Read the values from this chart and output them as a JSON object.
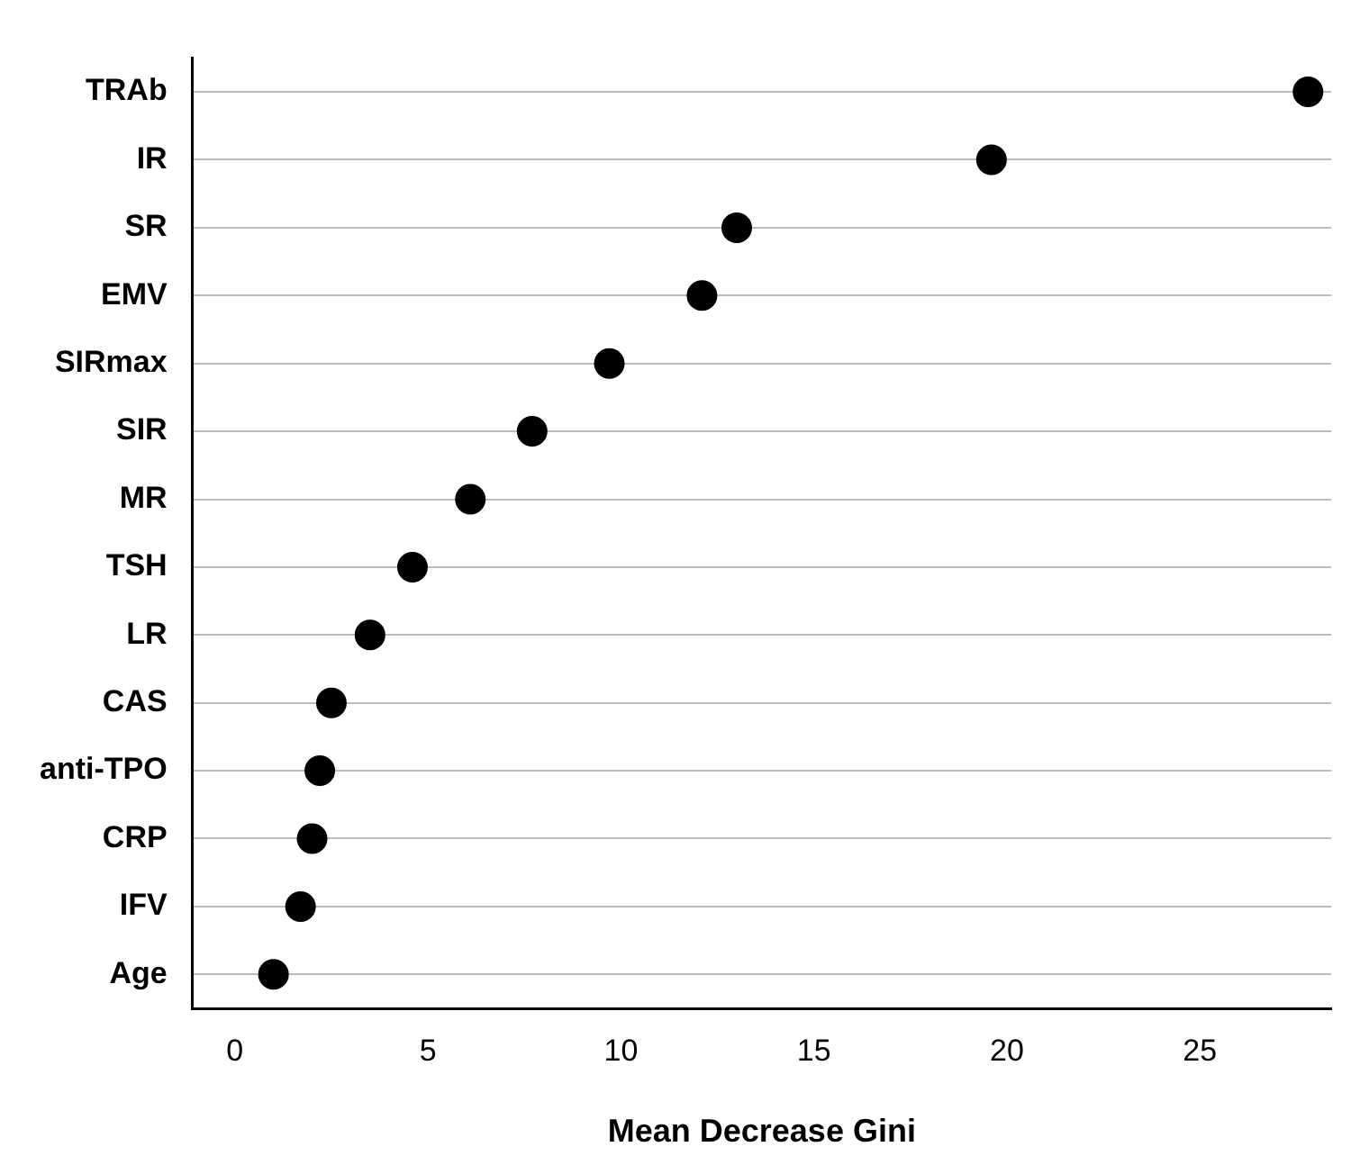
{
  "chart_data": {
    "type": "scatter",
    "orientation": "horizontal",
    "xlabel": "Mean Decrease Gini",
    "categories": [
      "TRAb",
      "IR",
      "SR",
      "EMV",
      "SIRmax",
      "SIR",
      "MR",
      "TSH",
      "LR",
      "CAS",
      "anti-TPO",
      "CRP",
      "IFV",
      "Age"
    ],
    "values": [
      27.8,
      19.6,
      13.0,
      12.1,
      9.7,
      7.7,
      6.1,
      4.6,
      3.5,
      2.5,
      2.2,
      2.0,
      1.7,
      1.0
    ],
    "color": "#000000",
    "marker": "circle",
    "xlim": [
      -1.1,
      28.4
    ],
    "xticks": [
      0,
      5,
      10,
      15,
      20,
      25
    ],
    "grid": "y",
    "legend": false
  }
}
